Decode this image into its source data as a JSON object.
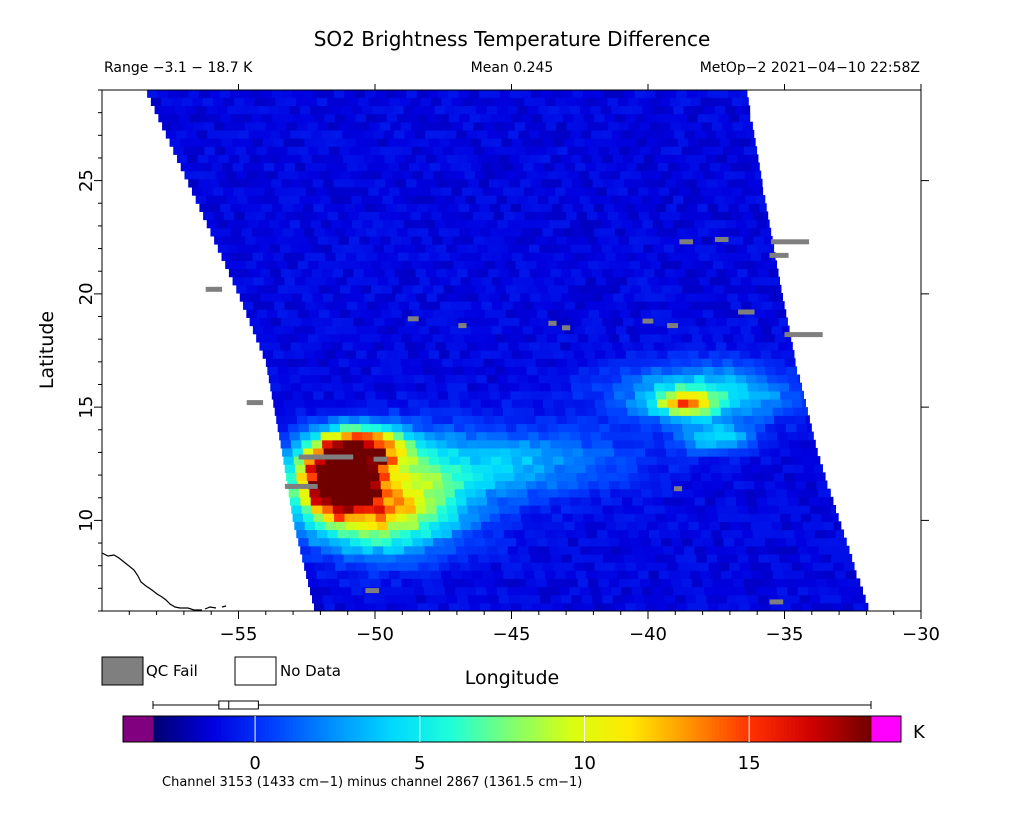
{
  "chart_data": {
    "type": "heatmap",
    "title": "SO2 Brightness Temperature Difference",
    "header": {
      "range": "Range −3.1 − 18.7 K",
      "mean": "Mean 0.245",
      "source": "MetOp−2 2021−04−10 22:58Z"
    },
    "xlabel": "Longitude",
    "ylabel": "Latitude",
    "xlim": [
      -60,
      -30
    ],
    "ylim": [
      6,
      29
    ],
    "x_ticks": [
      -55,
      -50,
      -45,
      -40,
      -35,
      -30
    ],
    "x_tick_labels": [
      "−55",
      "−50",
      "−45",
      "−40",
      "−35",
      "−30"
    ],
    "y_ticks": [
      10,
      15,
      20,
      25
    ],
    "y_tick_labels": [
      "10",
      "15",
      "20",
      "25"
    ],
    "value_range": [
      -3.1,
      18.7
    ],
    "mean": 0.245,
    "background_value": -1.2,
    "swath": {
      "left_edge": [
        [
          -58.4,
          29
        ],
        [
          -56.5,
          24
        ],
        [
          -55,
          20
        ],
        [
          -54,
          17
        ],
        [
          -53.4,
          13
        ],
        [
          -53.0,
          10
        ],
        [
          -52.2,
          6
        ]
      ],
      "right_edge": [
        [
          -36.4,
          29
        ],
        [
          -35.7,
          24
        ],
        [
          -35.1,
          20
        ],
        [
          -34.6,
          17
        ],
        [
          -33.8,
          13
        ],
        [
          -33.0,
          10
        ],
        [
          -31.9,
          6
        ]
      ]
    },
    "features": [
      {
        "lon": -51.5,
        "lat": 11.8,
        "peak": 18.7,
        "sx": 1.4,
        "sy": 1.5
      },
      {
        "lon": -50.5,
        "lat": 13.2,
        "peak": 14.0,
        "sx": 1.6,
        "sy": 0.9
      },
      {
        "lon": -50.0,
        "lat": 10.5,
        "peak": 9.0,
        "sx": 2.3,
        "sy": 1.8
      },
      {
        "lon": -48.5,
        "lat": 11.5,
        "peak": 4.0,
        "sx": 3.0,
        "sy": 2.2
      },
      {
        "lon": -38.5,
        "lat": 15.2,
        "peak": 10.0,
        "sx": 1.0,
        "sy": 0.5
      },
      {
        "lon": -38.0,
        "lat": 15.6,
        "peak": 5.0,
        "sx": 3.2,
        "sy": 1.3
      },
      {
        "lon": -37.5,
        "lat": 13.6,
        "peak": 4.0,
        "sx": 1.3,
        "sy": 0.6
      },
      {
        "lon": -44.5,
        "lat": 12.6,
        "peak": 2.5,
        "sx": 4.0,
        "sy": 1.5
      },
      {
        "lon": -42.0,
        "lat": 24.0,
        "peak": -1.5,
        "sx": 9.0,
        "sy": 3.0
      },
      {
        "lon": -45.0,
        "lat": 20.0,
        "peak": -1.0,
        "sx": 8.0,
        "sy": 2.0
      }
    ],
    "qc_fail": [
      [
        -55.9,
        20.2,
        0.6
      ],
      [
        -48.6,
        18.9,
        0.4
      ],
      [
        -46.8,
        18.6,
        0.3
      ],
      [
        -43.5,
        18.7,
        0.3
      ],
      [
        -43.0,
        18.5,
        0.3
      ],
      [
        -40.0,
        18.8,
        0.4
      ],
      [
        -39.1,
        18.6,
        0.4
      ],
      [
        -38.6,
        22.3,
        0.5
      ],
      [
        -37.3,
        22.4,
        0.5
      ],
      [
        -36.4,
        19.2,
        0.6
      ],
      [
        -34.8,
        22.3,
        1.4
      ],
      [
        -35.2,
        21.7,
        0.7
      ],
      [
        -34.3,
        18.2,
        1.4
      ],
      [
        -54.4,
        15.2,
        0.6
      ],
      [
        -51.8,
        12.8,
        2.0
      ],
      [
        -49.8,
        12.7,
        0.5
      ],
      [
        -52.7,
        11.5,
        1.2
      ],
      [
        -50.1,
        6.9,
        0.5
      ],
      [
        -38.9,
        11.4,
        0.3
      ],
      [
        -35.3,
        6.4,
        0.5
      ]
    ],
    "colorbar": {
      "min": -3.1,
      "max": 18.7,
      "ticks": [
        0,
        5,
        10,
        15
      ],
      "tick_labels": [
        "0",
        "5",
        "10",
        "15"
      ],
      "unit": "K",
      "colors": [
        "#000070",
        "#0000e0",
        "#0040ff",
        "#0090ff",
        "#00d8ff",
        "#20ffd8",
        "#80ff70",
        "#d8ff10",
        "#ffe800",
        "#ff9000",
        "#ff3000",
        "#d00000",
        "#700000"
      ],
      "underflow_color": "#800080",
      "overflow_color": "#ff00ff",
      "boxplot": {
        "whisker_low": -3.1,
        "q1": -1.1,
        "median": -0.8,
        "q3": 0.1,
        "whisker_high": 18.7
      }
    },
    "legend": {
      "qc_fail": "QC Fail",
      "no_data": "No Data",
      "qc_color": "#7f7f7f"
    },
    "footnote": "Channel 3153 (1433 cm−1) minus channel 2867 (1361.5 cm−1)"
  }
}
